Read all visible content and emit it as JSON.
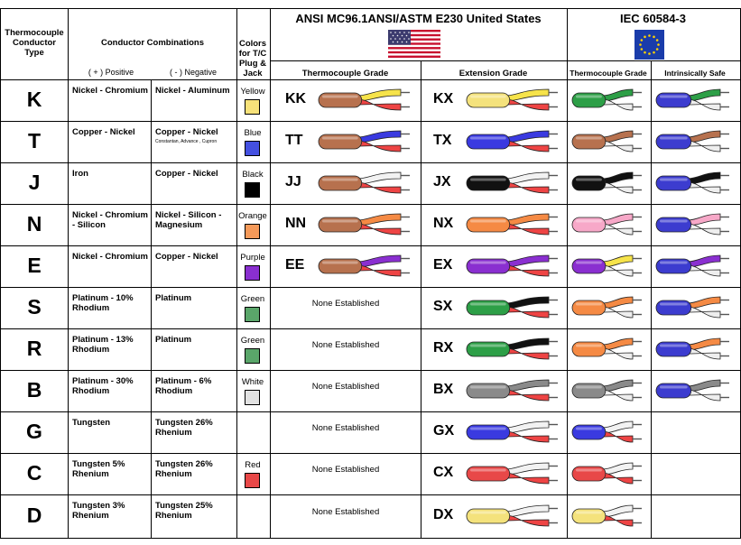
{
  "header": {
    "type_label": "Thermocouple Conductor Type",
    "combos_label": "Conductor Combinations",
    "positive_label": "( + ) Positive",
    "negative_label": "( - ) Negative",
    "colors_label": "Colors for T/C Plug & Jack",
    "ansi_title": "ANSI MC96.1ANSI/ASTM E230 United States",
    "iec_title": "IEC 60584-3",
    "tc_grade": "Thermocouple Grade",
    "ext_grade": "Extension Grade",
    "iec_tc_grade": "Thermocouple Grade",
    "iec_safe": "Intrinsically Safe"
  },
  "rows": [
    {
      "type": "K",
      "pos": "Nickel - Chromium",
      "neg": "Nickel - Aluminum",
      "neg_note": "",
      "color_name": "Yellow",
      "swatch": "#f7e27a",
      "tc_code": "KK",
      "tc_jacket": "#b7714e",
      "tc_pos": "#f6e34a",
      "tc_neg": "#e44",
      "none": "",
      "ext_code": "KX",
      "ext_jacket": "#f4e27c",
      "ext_pos": "#f6e34a",
      "ext_neg": "#e44",
      "iec_jacket": "#2d9f47",
      "iec_pos": "#2d9f47",
      "iec_neg": "#eee",
      "safe_jacket": "#3c3ccf",
      "safe_pos": "#2d9f47",
      "safe_neg": "#eee"
    },
    {
      "type": "T",
      "pos": "Copper - Nickel",
      "neg": "Copper - Nickel",
      "neg_note": "Constantan, Advance , Cupron",
      "color_name": "Blue",
      "swatch": "#4450e0",
      "tc_code": "TT",
      "tc_jacket": "#b7714e",
      "tc_pos": "#3a3ae0",
      "tc_neg": "#e44",
      "none": "",
      "ext_code": "TX",
      "ext_jacket": "#3a3ae0",
      "ext_pos": "#3a3ae0",
      "ext_neg": "#e44",
      "iec_jacket": "#b7714e",
      "iec_pos": "#b7714e",
      "iec_neg": "#eee",
      "safe_jacket": "#3c3ccf",
      "safe_pos": "#b7714e",
      "safe_neg": "#eee"
    },
    {
      "type": "J",
      "pos": "Iron",
      "neg": "Copper - Nickel",
      "neg_note": "",
      "color_name": "Black",
      "swatch": "#000000",
      "tc_code": "JJ",
      "tc_jacket": "#b7714e",
      "tc_pos": "#f2f2f2",
      "tc_neg": "#e44",
      "none": "",
      "ext_code": "JX",
      "ext_jacket": "#111111",
      "ext_pos": "#f2f2f2",
      "ext_neg": "#e44",
      "iec_jacket": "#111111",
      "iec_pos": "#111111",
      "iec_neg": "#eee",
      "safe_jacket": "#3c3ccf",
      "safe_pos": "#111111",
      "safe_neg": "#eee"
    },
    {
      "type": "N",
      "pos": "Nickel - Chromium - Silicon",
      "neg": "Nickel - Silicon - Magnesium",
      "neg_note": "",
      "color_name": "Orange",
      "swatch": "#f59a5a",
      "tc_code": "NN",
      "tc_jacket": "#b7714e",
      "tc_pos": "#f58a44",
      "tc_neg": "#e44",
      "none": "",
      "ext_code": "NX",
      "ext_jacket": "#f58a44",
      "ext_pos": "#f58a44",
      "ext_neg": "#e44",
      "iec_jacket": "#f7a8c8",
      "iec_pos": "#f7a8c8",
      "iec_neg": "#eee",
      "safe_jacket": "#3c3ccf",
      "safe_pos": "#f7a8c8",
      "safe_neg": "#eee"
    },
    {
      "type": "E",
      "pos": "Nickel - Chromium",
      "neg": "Copper - Nickel",
      "neg_note": "",
      "color_name": "Purple",
      "swatch": "#8a2fd0",
      "tc_code": "EE",
      "tc_jacket": "#b7714e",
      "tc_pos": "#8a2fd0",
      "tc_neg": "#e44",
      "none": "",
      "ext_code": "EX",
      "ext_jacket": "#8a2fd0",
      "ext_pos": "#8a2fd0",
      "ext_neg": "#e44",
      "iec_jacket": "#8a2fd0",
      "iec_pos": "#f6e34a",
      "iec_neg": "#eee",
      "safe_jacket": "#3c3ccf",
      "safe_pos": "#8a2fd0",
      "safe_neg": "#eee"
    },
    {
      "type": "S",
      "pos": "Platinum - 10% Rhodium",
      "neg": "Platinum",
      "neg_note": "",
      "color_name": "Green",
      "swatch": "#5aa66a",
      "tc_code": "",
      "tc_jacket": "",
      "tc_pos": "",
      "tc_neg": "",
      "none": "None Established",
      "ext_code": "SX",
      "ext_jacket": "#2d9f47",
      "ext_pos": "#111111",
      "ext_neg": "#e44",
      "iec_jacket": "#f58a44",
      "iec_pos": "#f58a44",
      "iec_neg": "#eee",
      "safe_jacket": "#3c3ccf",
      "safe_pos": "#f58a44",
      "safe_neg": "#eee"
    },
    {
      "type": "R",
      "pos": "Platinum - 13% Rhodium",
      "neg": "Platinum",
      "neg_note": "",
      "color_name": "Green",
      "swatch": "#5aa66a",
      "tc_code": "",
      "tc_jacket": "",
      "tc_pos": "",
      "tc_neg": "",
      "none": "None Established",
      "ext_code": "RX",
      "ext_jacket": "#2d9f47",
      "ext_pos": "#111111",
      "ext_neg": "#e44",
      "iec_jacket": "#f58a44",
      "iec_pos": "#f58a44",
      "iec_neg": "#eee",
      "safe_jacket": "#3c3ccf",
      "safe_pos": "#f58a44",
      "safe_neg": "#eee"
    },
    {
      "type": "B",
      "pos": "Platinum - 30% Rhodium",
      "neg": "Platinum - 6% Rhodium",
      "neg_note": "",
      "color_name": "White",
      "swatch": "#e2e2e2",
      "tc_code": "",
      "tc_jacket": "",
      "tc_pos": "",
      "tc_neg": "",
      "none": "None Established",
      "ext_code": "BX",
      "ext_jacket": "#8a8a8a",
      "ext_pos": "#8a8a8a",
      "ext_neg": "#e44",
      "iec_jacket": "#8a8a8a",
      "iec_pos": "#8a8a8a",
      "iec_neg": "#eee",
      "safe_jacket": "#3c3ccf",
      "safe_pos": "#8a8a8a",
      "safe_neg": "#eee"
    },
    {
      "type": "G",
      "pos": "Tungsten",
      "neg": "Tungsten 26% Rhenium",
      "neg_note": "",
      "color_name": "",
      "swatch": "",
      "tc_code": "",
      "tc_jacket": "",
      "tc_pos": "",
      "tc_neg": "",
      "none": "None Established",
      "ext_code": "GX",
      "ext_jacket": "#3a3ae0",
      "ext_pos": "#f2f2f2",
      "ext_neg": "#e44",
      "iec_jacket": "#3a3ae0",
      "iec_pos": "#f2f2f2",
      "iec_neg": "#e44",
      "safe_jacket": "",
      "safe_pos": "",
      "safe_neg": ""
    },
    {
      "type": "C",
      "pos": "Tungsten 5% Rhenium",
      "neg": "Tungsten 26% Rhenium",
      "neg_note": "",
      "color_name": "Red",
      "swatch": "#e84848",
      "tc_code": "",
      "tc_jacket": "",
      "tc_pos": "",
      "tc_neg": "",
      "none": "None Established",
      "ext_code": "CX",
      "ext_jacket": "#e84848",
      "ext_pos": "#f2f2f2",
      "ext_neg": "#e44",
      "iec_jacket": "#e84848",
      "iec_pos": "#f2f2f2",
      "iec_neg": "#e44",
      "safe_jacket": "",
      "safe_pos": "",
      "safe_neg": ""
    },
    {
      "type": "D",
      "pos": "Tungsten 3% Rhenium",
      "neg": "Tungsten 25% Rhenium",
      "neg_note": "",
      "color_name": "",
      "swatch": "",
      "tc_code": "",
      "tc_jacket": "",
      "tc_pos": "",
      "tc_neg": "",
      "none": "None Established",
      "ext_code": "DX",
      "ext_jacket": "#f4e27c",
      "ext_pos": "#f2f2f2",
      "ext_neg": "#e44",
      "iec_jacket": "#f4e27c",
      "iec_pos": "#f2f2f2",
      "iec_neg": "#e44",
      "safe_jacket": "",
      "safe_pos": "",
      "safe_neg": ""
    }
  ]
}
